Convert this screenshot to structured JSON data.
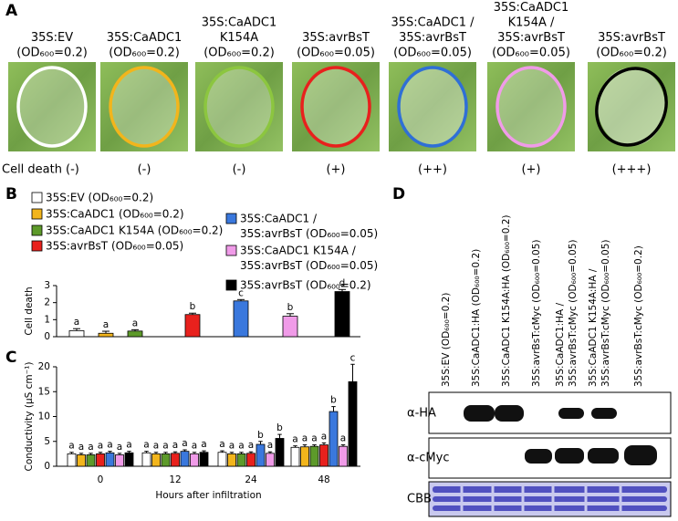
{
  "panel_a": {
    "letter": "A",
    "row_label": "Cell death",
    "samples": [
      {
        "label": [
          "35S:EV",
          "(OD₆₀₀=0.2)"
        ],
        "score": "(-)",
        "circle_color": "#ffffff"
      },
      {
        "label": [
          "35S:CaADC1",
          "(OD₆₀₀=0.2)"
        ],
        "score": "(-)",
        "circle_color": "#f2b51c"
      },
      {
        "label": [
          "35S:CaADC1",
          "K154A",
          "(OD₆₀₀=0.2)"
        ],
        "score": "(-)",
        "circle_color": "#8cc63f"
      },
      {
        "label": [
          "35S:avrBsT",
          "(OD₆₀₀=0.05)"
        ],
        "score": "(+)",
        "circle_color": "#e8211d"
      },
      {
        "label": [
          "35S:CaADC1 /",
          "35S:avrBsT",
          "(OD₆₀₀=0.05)"
        ],
        "score": "(++)",
        "circle_color": "#2f6fd6"
      },
      {
        "label": [
          "35S:CaADC1",
          "K154A /",
          "35S:avrBsT",
          "(OD₆₀₀=0.05)"
        ],
        "score": "(+)",
        "circle_color": "#f09be8"
      },
      {
        "label": [
          "35S:avrBsT",
          "(OD₆₀₀=0.2)"
        ],
        "score": "(+++)",
        "circle_color": "#000000"
      }
    ]
  },
  "chart_data": [
    {
      "type": "bar",
      "letter": "B",
      "ylabel": "Cell death",
      "ylim": [
        0,
        3
      ],
      "yticks": [
        0,
        1,
        2,
        3
      ],
      "categories": [
        null
      ],
      "series": [
        {
          "name": [
            "35S:EV (OD₆₀₀=0.2)"
          ],
          "color": "#ffffff",
          "values": [
            0.35
          ],
          "errors": [
            0.12
          ],
          "letters": [
            "a"
          ]
        },
        {
          "name": [
            "35S:CaADC1 (OD₆₀₀=0.2)"
          ],
          "color": "#f2b51c",
          "values": [
            0.2
          ],
          "errors": [
            0.12
          ],
          "letters": [
            "a"
          ]
        },
        {
          "name": [
            "35S:CaADC1 K154A (OD₆₀₀=0.2)"
          ],
          "color": "#5d9a2a",
          "values": [
            0.33
          ],
          "errors": [
            0.08
          ],
          "letters": [
            "a"
          ]
        },
        {
          "name": [
            "35S:avrBsT (OD₆₀₀=0.05)"
          ],
          "color": "#e8211d",
          "values": [
            1.3
          ],
          "errors": [
            0.08
          ],
          "letters": [
            "b"
          ]
        },
        {
          "name": [
            "35S:CaADC1 /",
            "35S:avrBsT (OD₆₀₀=0.05)"
          ],
          "color": "#3a78dd",
          "values": [
            2.1
          ],
          "errors": [
            0.08
          ],
          "letters": [
            "c"
          ]
        },
        {
          "name": [
            "35S:CaADC1 K154A /",
            "35S:avrBsT (OD₆₀₀=0.05)"
          ],
          "color": "#f09be8",
          "values": [
            1.2
          ],
          "errors": [
            0.15
          ],
          "letters": [
            "b"
          ]
        },
        {
          "name": [
            "35S:avrBsT (OD₆₀₀=0.2)"
          ],
          "color": "#000000",
          "values": [
            2.65
          ],
          "errors": [
            0.12
          ],
          "letters": [
            "d"
          ]
        }
      ]
    },
    {
      "type": "bar",
      "letter": "C",
      "ylabel": "Conductivity (μS cm⁻¹)",
      "xlabel": "Hours after infiltration",
      "ylim": [
        0,
        20
      ],
      "yticks": [
        0,
        5,
        10,
        15,
        20
      ],
      "categories": [
        0,
        12,
        24,
        48
      ],
      "series": [
        {
          "color": "#ffffff",
          "values": [
            2.5,
            2.7,
            2.8,
            3.8
          ],
          "errors": [
            0.3,
            0.3,
            0.3,
            0.3
          ],
          "letters": [
            "a",
            "a",
            "a",
            "a"
          ]
        },
        {
          "color": "#f2b51c",
          "values": [
            2.3,
            2.5,
            2.5,
            3.9
          ],
          "errors": [
            0.3,
            0.3,
            0.3,
            0.4
          ],
          "letters": [
            "a",
            "a",
            "a",
            "a"
          ]
        },
        {
          "color": "#5d9a2a",
          "values": [
            2.3,
            2.5,
            2.5,
            4.0
          ],
          "errors": [
            0.3,
            0.3,
            0.3,
            0.3
          ],
          "letters": [
            "a",
            "a",
            "a",
            "a"
          ]
        },
        {
          "color": "#e8211d",
          "values": [
            2.5,
            2.6,
            2.6,
            4.3
          ],
          "errors": [
            0.3,
            0.3,
            0.3,
            0.4
          ],
          "letters": [
            "a",
            "a",
            "a",
            "a"
          ]
        },
        {
          "color": "#3a78dd",
          "values": [
            2.7,
            3.0,
            4.4,
            11.0
          ],
          "errors": [
            0.3,
            0.3,
            0.6,
            1.0
          ],
          "letters": [
            "a",
            "a",
            "b",
            "b"
          ]
        },
        {
          "color": "#f09be8",
          "values": [
            2.3,
            2.5,
            2.6,
            4.0
          ],
          "errors": [
            0.3,
            0.3,
            0.3,
            0.3
          ],
          "letters": [
            "a",
            "a",
            "a",
            "a"
          ]
        },
        {
          "color": "#000000",
          "values": [
            2.7,
            2.8,
            5.6,
            17.0
          ],
          "errors": [
            0.3,
            0.3,
            0.8,
            3.5
          ],
          "letters": [
            "a",
            "a",
            "b",
            "c"
          ]
        }
      ]
    }
  ],
  "panel_d": {
    "letter": "D",
    "rows": [
      "α-HA",
      "α-cMyc",
      "CBB"
    ],
    "lanes": [
      [
        "35S:EV (OD₆₀₀=0.2)"
      ],
      [
        "35S:CaADC1:HA (OD₆₀₀=0.2)"
      ],
      [
        "35S:CaADC1 K154A:HA (OD₆₀₀=0.2)"
      ],
      [
        "35S:avrBsT:cMyc (OD₆₀₀=0.05)"
      ],
      [
        "35S:CaADC1:HA /",
        "35S:avrBsT:cMyc (OD₆₀₀=0.05)"
      ],
      [
        "35S:CaADC1 K154A:HA /",
        "35S:avrBsT:cMyc (OD₆₀₀=0.05)"
      ],
      [
        "35S:avrBsT:cMyc (OD₆₀₀=0.2)"
      ]
    ]
  }
}
